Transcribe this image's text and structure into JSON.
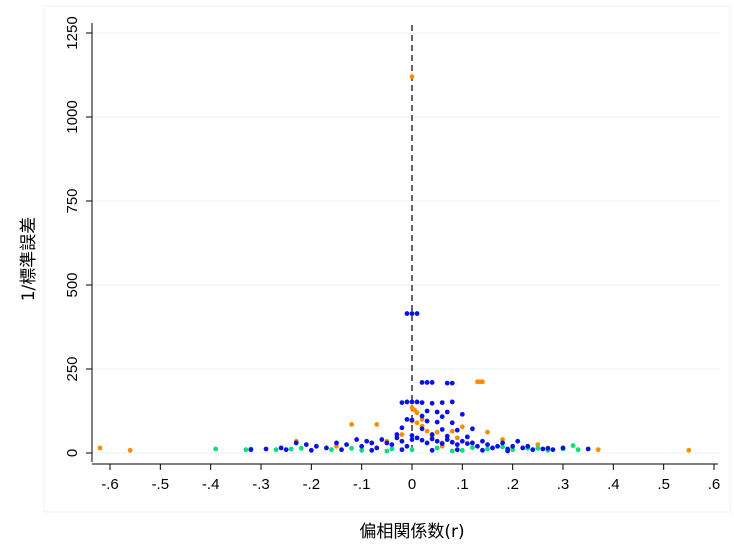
{
  "chart_data": {
    "type": "scatter",
    "title": "",
    "xlabel": "偏相関係数(r)",
    "ylabel": "1/標準誤差",
    "xlim": [
      -0.6,
      0.6
    ],
    "ylim": [
      0,
      1250
    ],
    "xticks": [
      -0.6,
      -0.5,
      -0.4,
      -0.3,
      -0.2,
      -0.1,
      0,
      0.1,
      0.2,
      0.3,
      0.4,
      0.5,
      0.6
    ],
    "xtick_labels": [
      "-.6",
      "-.5",
      "-.4",
      "-.3",
      "-.2",
      "-.1",
      "0",
      ".1",
      ".2",
      ".3",
      ".4",
      ".5",
      ".6"
    ],
    "yticks": [
      0,
      250,
      500,
      750,
      1000,
      1250
    ],
    "ytick_labels": [
      "0",
      "250",
      "500",
      "750",
      "1000",
      "1250"
    ],
    "grid": true,
    "reference_line": {
      "x": 0,
      "style": "dashed",
      "color": "#000000"
    },
    "colors": {
      "series_blue": "#0a12e6",
      "series_orange": "#ff8c00",
      "series_green": "#00e07a",
      "grid": "#eaf0f4",
      "axis": "#000000"
    },
    "series": [
      {
        "color": "#ff8c00",
        "points": [
          [
            0.0,
            1120
          ],
          [
            0.13,
            212
          ],
          [
            0.135,
            212
          ],
          [
            0.14,
            212
          ],
          [
            -0.62,
            15
          ],
          [
            -0.56,
            8
          ],
          [
            0.55,
            8
          ],
          [
            0.37,
            10
          ],
          [
            -0.12,
            85
          ],
          [
            -0.07,
            85
          ],
          [
            0.0,
            135
          ],
          [
            0.005,
            128
          ],
          [
            0.01,
            120
          ],
          [
            0.02,
            80
          ],
          [
            0.03,
            65
          ],
          [
            0.05,
            62
          ],
          [
            0.08,
            65
          ],
          [
            0.1,
            78
          ],
          [
            0.15,
            62
          ],
          [
            0.0,
            95
          ],
          [
            -0.02,
            55
          ],
          [
            0.04,
            50
          ],
          [
            0.06,
            30
          ],
          [
            0.02,
            100
          ],
          [
            0.01,
            90
          ],
          [
            -0.05,
            35
          ],
          [
            -0.23,
            35
          ],
          [
            0.06,
            20
          ],
          [
            0.12,
            30
          ],
          [
            0.18,
            40
          ],
          [
            0.25,
            25
          ],
          [
            -0.15,
            20
          ],
          [
            0.09,
            45
          ]
        ]
      },
      {
        "color": "#00e07a",
        "points": [
          [
            -0.39,
            12
          ],
          [
            -0.33,
            10
          ],
          [
            -0.32,
            12
          ],
          [
            -0.27,
            10
          ],
          [
            -0.24,
            12
          ],
          [
            -0.22,
            14
          ],
          [
            -0.16,
            10
          ],
          [
            -0.1,
            8
          ],
          [
            -0.05,
            6
          ],
          [
            0.0,
            10
          ],
          [
            0.05,
            15
          ],
          [
            0.1,
            8
          ],
          [
            0.15,
            12
          ],
          [
            0.2,
            10
          ],
          [
            0.23,
            14
          ],
          [
            0.25,
            14
          ],
          [
            0.3,
            12
          ],
          [
            0.33,
            10
          ],
          [
            0.32,
            22
          ],
          [
            0.27,
            8
          ],
          [
            -0.04,
            12
          ],
          [
            0.08,
            6
          ],
          [
            0.12,
            16
          ],
          [
            -0.12,
            14
          ],
          [
            0.18,
            18
          ]
        ]
      },
      {
        "color": "#0a12e6",
        "points": [
          [
            -0.01,
            415
          ],
          [
            0.0,
            415
          ],
          [
            0.01,
            415
          ],
          [
            0.02,
            210
          ],
          [
            0.03,
            210
          ],
          [
            0.04,
            210
          ],
          [
            0.07,
            208
          ],
          [
            0.08,
            208
          ],
          [
            -0.02,
            150
          ],
          [
            -0.01,
            152
          ],
          [
            0.0,
            152
          ],
          [
            0.01,
            152
          ],
          [
            0.02,
            150
          ],
          [
            0.04,
            148
          ],
          [
            0.06,
            150
          ],
          [
            0.08,
            152
          ],
          [
            0.03,
            125
          ],
          [
            0.05,
            122
          ],
          [
            0.07,
            122
          ],
          [
            0.02,
            110
          ],
          [
            0.06,
            108
          ],
          [
            0.1,
            115
          ],
          [
            -0.01,
            100
          ],
          [
            0.0,
            98
          ],
          [
            0.03,
            95
          ],
          [
            0.05,
            92
          ],
          [
            0.08,
            90
          ],
          [
            -0.02,
            75
          ],
          [
            0.02,
            72
          ],
          [
            0.06,
            70
          ],
          [
            0.09,
            68
          ],
          [
            0.12,
            72
          ],
          [
            -0.03,
            55
          ],
          [
            0.0,
            52
          ],
          [
            0.04,
            55
          ],
          [
            0.07,
            50
          ],
          [
            0.11,
            48
          ],
          [
            -0.32,
            10
          ],
          [
            -0.29,
            12
          ],
          [
            -0.26,
            15
          ],
          [
            -0.23,
            30
          ],
          [
            -0.21,
            25
          ],
          [
            -0.19,
            20
          ],
          [
            -0.17,
            15
          ],
          [
            -0.15,
            30
          ],
          [
            -0.13,
            25
          ],
          [
            -0.11,
            40
          ],
          [
            -0.1,
            20
          ],
          [
            -0.09,
            35
          ],
          [
            -0.08,
            30
          ],
          [
            -0.07,
            15
          ],
          [
            -0.06,
            40
          ],
          [
            -0.05,
            30
          ],
          [
            -0.04,
            25
          ],
          [
            -0.03,
            45
          ],
          [
            -0.02,
            35
          ],
          [
            -0.01,
            20
          ],
          [
            0.0,
            40
          ],
          [
            0.01,
            45
          ],
          [
            0.02,
            38
          ],
          [
            0.03,
            30
          ],
          [
            0.04,
            42
          ],
          [
            0.05,
            35
          ],
          [
            0.06,
            28
          ],
          [
            0.07,
            40
          ],
          [
            0.08,
            32
          ],
          [
            0.09,
            25
          ],
          [
            0.1,
            35
          ],
          [
            0.11,
            28
          ],
          [
            0.12,
            30
          ],
          [
            0.13,
            20
          ],
          [
            0.14,
            35
          ],
          [
            0.15,
            25
          ],
          [
            0.16,
            15
          ],
          [
            0.17,
            20
          ],
          [
            0.18,
            30
          ],
          [
            0.19,
            12
          ],
          [
            0.2,
            20
          ],
          [
            0.21,
            35
          ],
          [
            0.22,
            15
          ],
          [
            0.23,
            20
          ],
          [
            0.24,
            10
          ],
          [
            0.26,
            12
          ],
          [
            0.28,
            10
          ],
          [
            0.3,
            15
          ],
          [
            0.35,
            12
          ],
          [
            -0.2,
            8
          ],
          [
            -0.14,
            10
          ],
          [
            -0.08,
            8
          ],
          [
            -0.02,
            10
          ],
          [
            0.04,
            8
          ],
          [
            0.09,
            10
          ],
          [
            0.14,
            8
          ],
          [
            0.19,
            6
          ],
          [
            -0.25,
            10
          ],
          [
            0.27,
            14
          ]
        ]
      }
    ]
  }
}
